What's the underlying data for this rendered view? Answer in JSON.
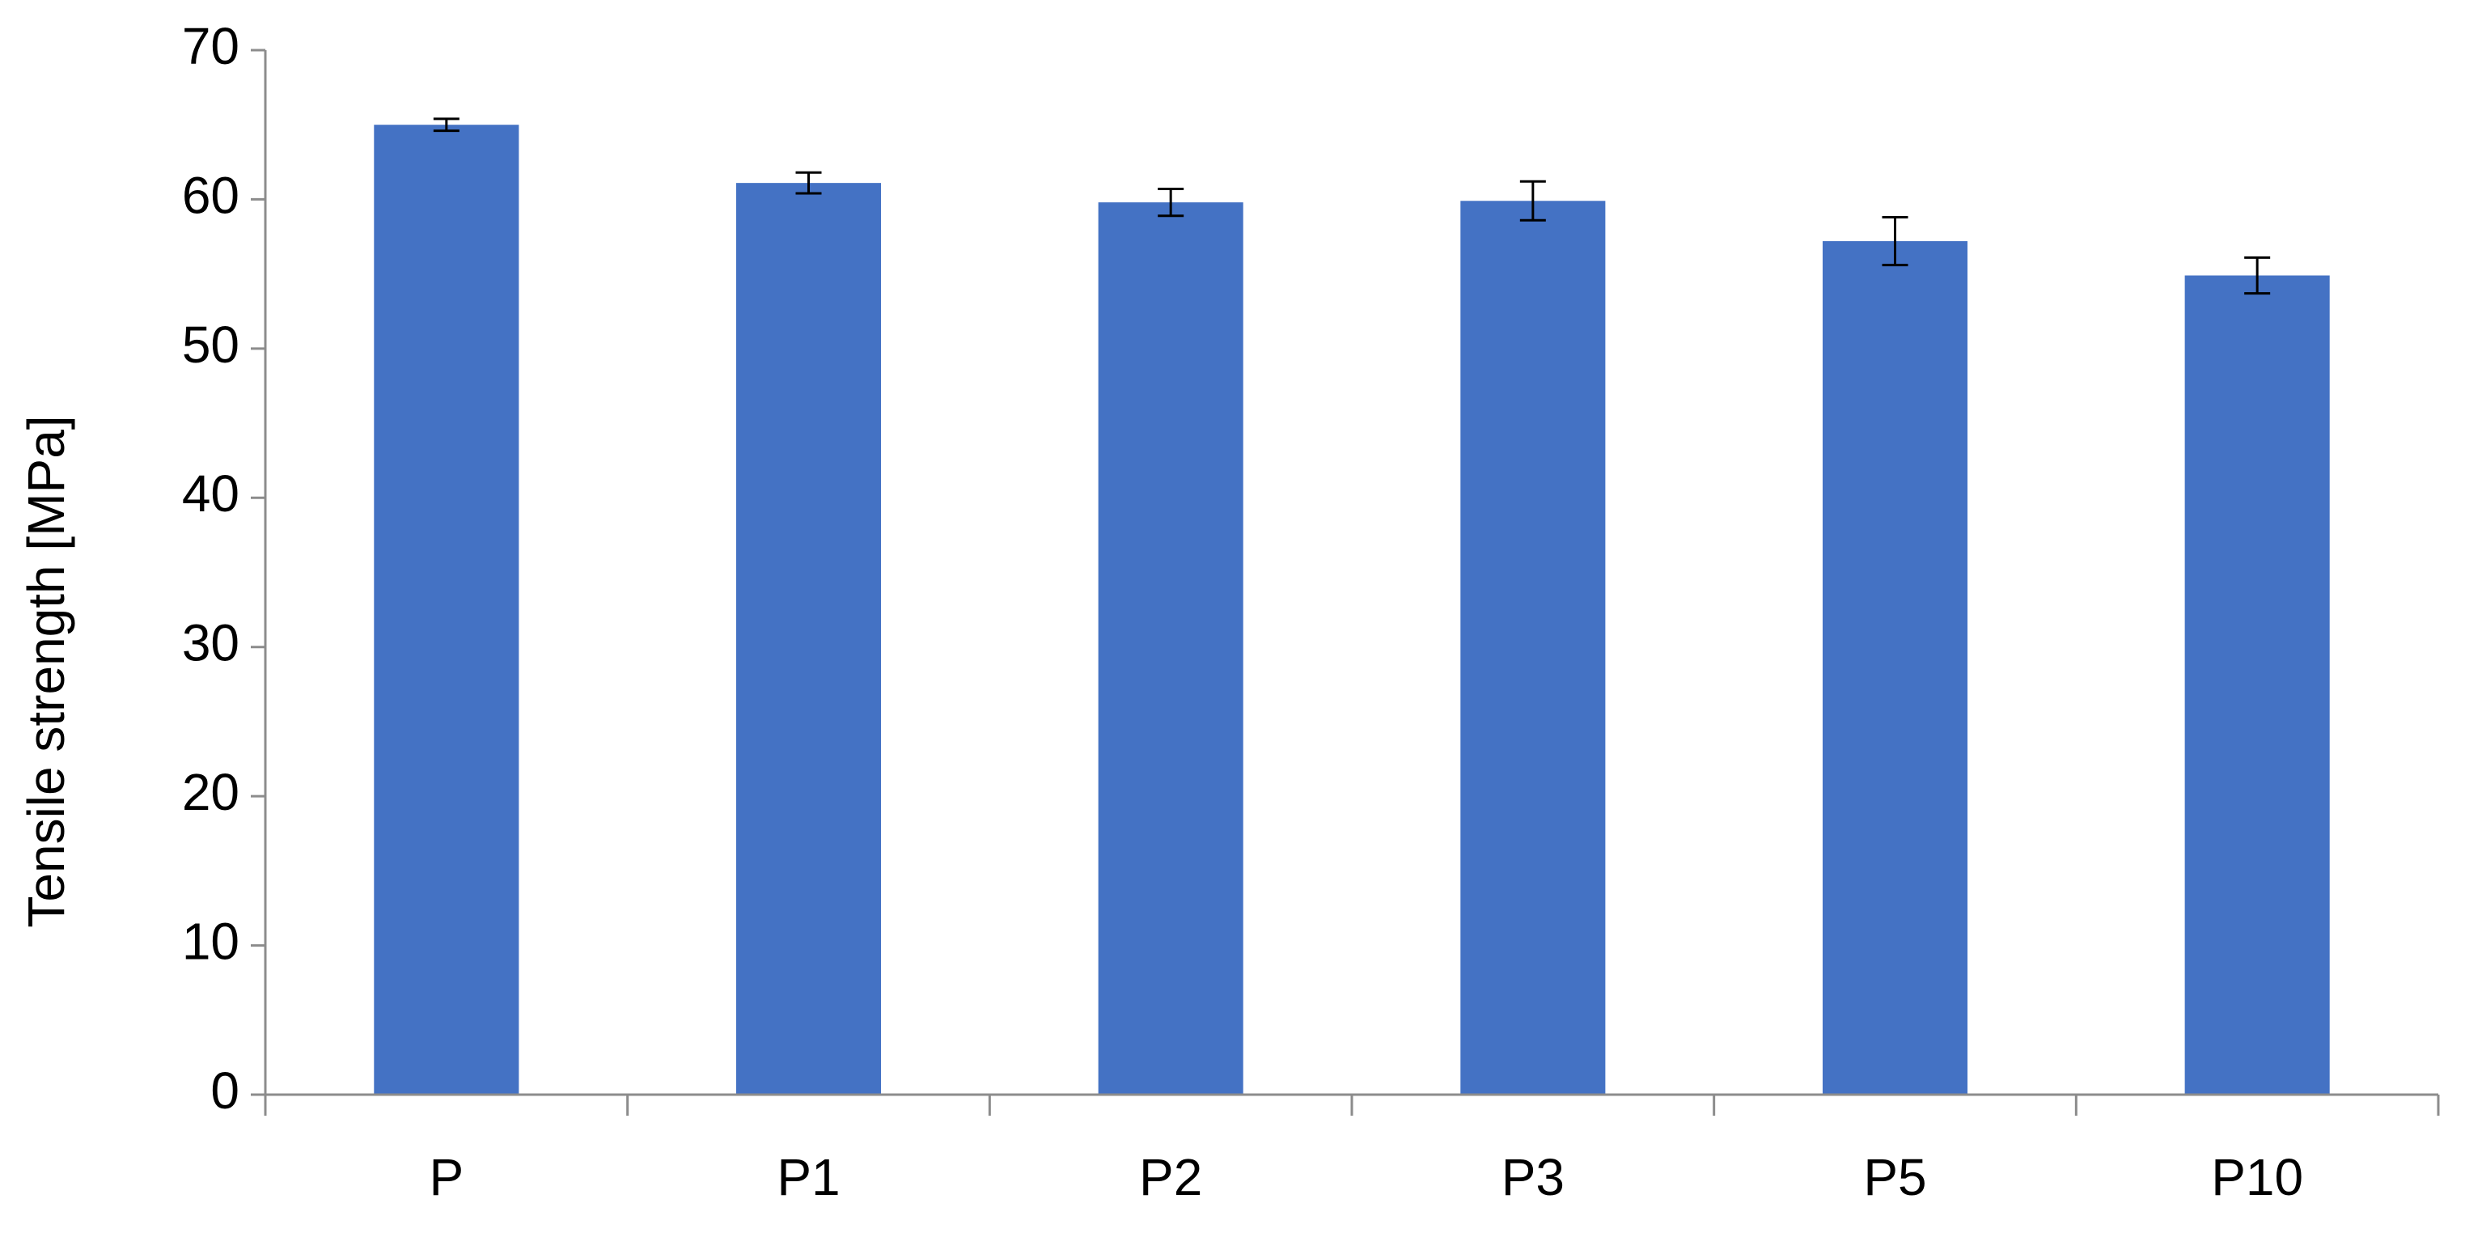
{
  "chart_data": {
    "type": "bar",
    "y_label": "Tensile strength [MPa]",
    "categories": [
      "P",
      "P1",
      "P2",
      "P3",
      "P5",
      "P10"
    ],
    "values": [
      65.0,
      61.1,
      59.8,
      59.9,
      57.2,
      54.9
    ],
    "errors": [
      0.4,
      0.7,
      0.9,
      1.3,
      1.6,
      1.2
    ],
    "color": "#4472c4",
    "ylim": [
      0,
      70
    ],
    "yticks": [
      0,
      10,
      20,
      30,
      40,
      50,
      60,
      70
    ],
    "grid": false
  }
}
